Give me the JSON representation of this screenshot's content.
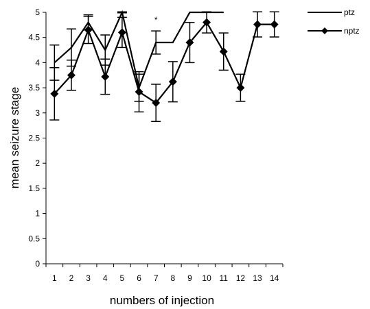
{
  "chart_data": {
    "type": "line",
    "xlabel": "numbers of injection",
    "ylabel": "mean seizure stage",
    "categories": [
      "1",
      "2",
      "3",
      "4",
      "5",
      "6",
      "7",
      "8",
      "9",
      "10",
      "11",
      "12",
      "13",
      "14"
    ],
    "ylim": [
      0,
      5
    ],
    "y_ticks": [
      "0",
      "0.5",
      "1",
      "1.5",
      "2",
      "2.5",
      "3",
      "3.5",
      "4",
      "4.5",
      "5"
    ],
    "grid": false,
    "legend_position": "top-right",
    "series": [
      {
        "name": "ptz",
        "marker": "none",
        "values": [
          4.0,
          4.3,
          4.8,
          4.25,
          5.0,
          3.5,
          4.4,
          4.4,
          5.0,
          5.0,
          5.0,
          null,
          null,
          null
        ],
        "errors": [
          0.35,
          0.37,
          0.15,
          0.3,
          0.01,
          0.27,
          0.23,
          0.0,
          0.0,
          0.0,
          0.0,
          null,
          null,
          null
        ]
      },
      {
        "name": "nptz",
        "marker": "diamond",
        "values": [
          3.38,
          3.75,
          4.65,
          3.72,
          4.6,
          3.42,
          3.2,
          3.62,
          4.4,
          4.8,
          4.22,
          3.5,
          4.76,
          4.76
        ],
        "errors": [
          0.52,
          0.3,
          0.27,
          0.35,
          0.3,
          0.4,
          0.37,
          0.4,
          0.4,
          0.21,
          0.37,
          0.27,
          0.25,
          0.25
        ]
      }
    ],
    "annotations": [
      {
        "text": "*",
        "x": "7",
        "y": 4.85
      }
    ]
  }
}
